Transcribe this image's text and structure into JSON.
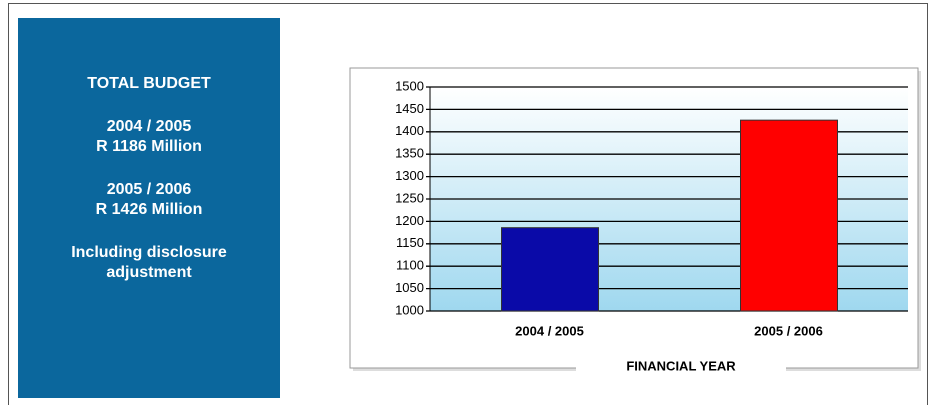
{
  "panel": {
    "lines": [
      "TOTAL BUDGET",
      "2004 / 2005",
      "R 1186 Million",
      "2005 / 2006",
      "R 1426 Million",
      "Including disclosure adjustment"
    ]
  },
  "chart_data": {
    "type": "bar",
    "x_label": "FINANCIAL YEAR",
    "categories": [
      "2004 / 2005",
      "2005 / 2006"
    ],
    "series": [
      {
        "name": null,
        "values": [
          1186,
          1426
        ]
      }
    ],
    "colors": [
      "#0a0aa8",
      "#ff0000"
    ],
    "ylim": [
      1000,
      1500
    ],
    "yticks": [
      1000,
      1050,
      1100,
      1150,
      1200,
      1250,
      1300,
      1350,
      1400,
      1450,
      1500
    ],
    "grid": true
  }
}
